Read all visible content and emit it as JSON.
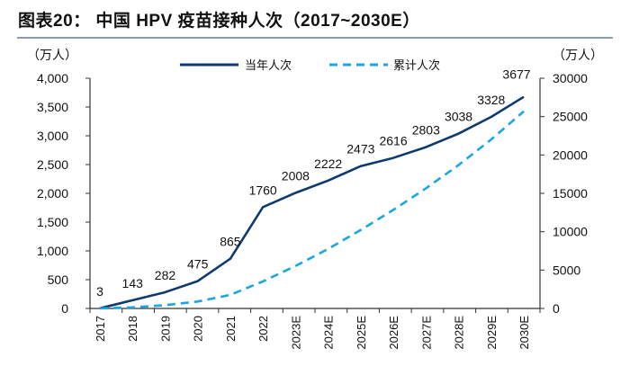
{
  "title": "图表20： 中国 HPV 疫苗接种人次（2017~2030E）",
  "chart_data": {
    "type": "line",
    "categories": [
      "2017",
      "2018",
      "2019",
      "2020",
      "2021",
      "2022",
      "2023E",
      "2024E",
      "2025E",
      "2026E",
      "2027E",
      "2028E",
      "2029E",
      "2030E"
    ],
    "series": [
      {
        "name": "当年人次",
        "axis": "left",
        "color": "#0e3a70",
        "style": "solid",
        "values": [
          3,
          143,
          282,
          475,
          865,
          1760,
          2008,
          2222,
          2473,
          2616,
          2803,
          3038,
          3328,
          3677
        ],
        "data_labels": true
      },
      {
        "name": "累计人次",
        "axis": "right",
        "color": "#1aa7e0",
        "style": "dashed",
        "values": [
          3,
          146,
          428,
          903,
          1768,
          3528,
          5536,
          7758,
          10231,
          12847,
          15650,
          18688,
          22016,
          25693
        ],
        "data_labels": false
      }
    ],
    "y_left": {
      "label": "（万人）",
      "lim": [
        0,
        4000
      ],
      "ticks": [
        "0",
        "500",
        "1,000",
        "1,500",
        "2,000",
        "2,500",
        "3,000",
        "3,500",
        "4,000"
      ]
    },
    "y_right": {
      "label": "（万人）",
      "lim": [
        0,
        30000
      ],
      "ticks": [
        "0",
        "5000",
        "10000",
        "15000",
        "20000",
        "25000",
        "30000"
      ]
    },
    "grid": false,
    "legend": "top-center"
  }
}
